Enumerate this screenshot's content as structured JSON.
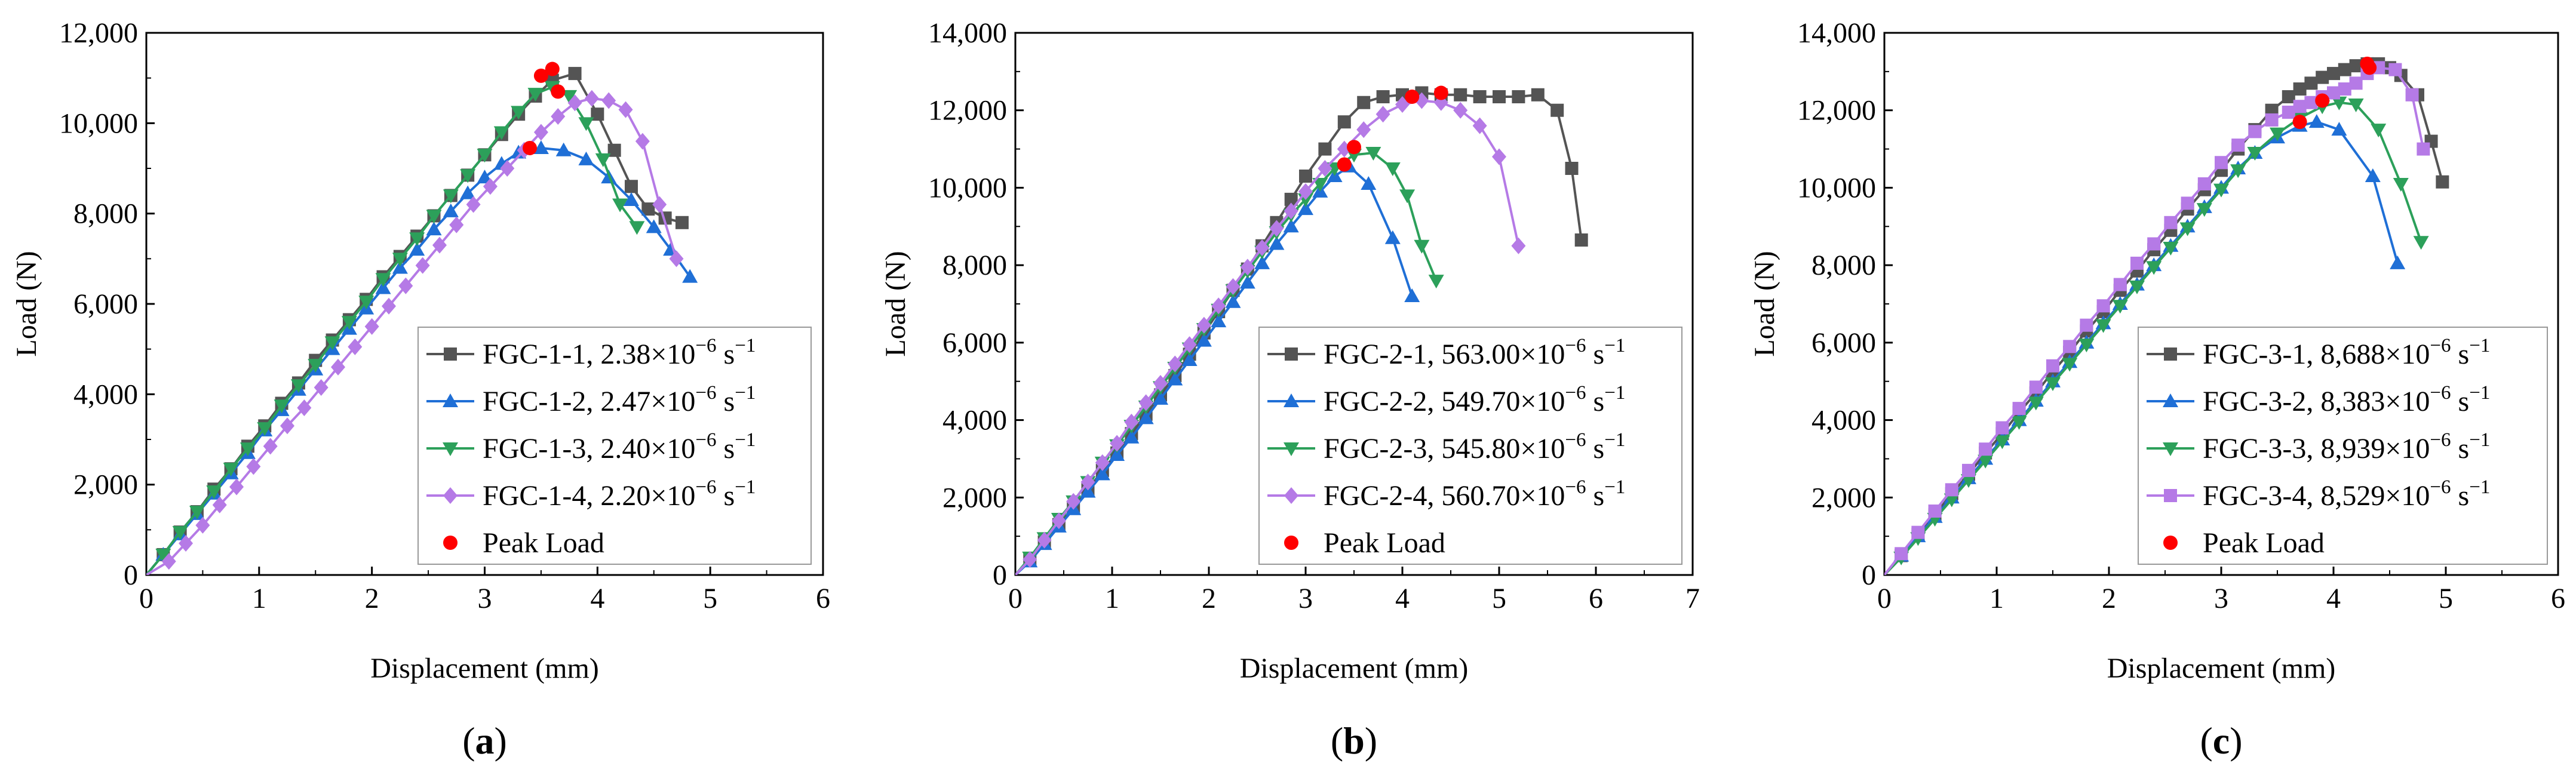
{
  "figure": {
    "panel_labels": [
      "(a)",
      "(b)",
      "(c)"
    ],
    "colors": {
      "black": "#545454",
      "blue": "#1f6fd6",
      "green": "#2ca05a",
      "purple": "#b57ae6",
      "peak": "#ff0000"
    }
  },
  "chart_data": [
    {
      "type": "line",
      "panel_label": "(a)",
      "xlabel": "Displacement (mm)",
      "ylabel": "Load (N)",
      "xlim": [
        0,
        6
      ],
      "ylim": [
        0,
        12000
      ],
      "xticks": [
        0,
        1,
        2,
        3,
        4,
        5,
        6
      ],
      "xtick_labels": [
        "0",
        "1",
        "2",
        "3",
        "4",
        "5",
        "6"
      ],
      "yticks": [
        0,
        2000,
        4000,
        6000,
        8000,
        10000,
        12000
      ],
      "ytick_labels": [
        "0",
        "2,000",
        "4,000",
        "6,000",
        "8,000",
        "10,000",
        "12,000"
      ],
      "legend_position": "bottom-right",
      "series": [
        {
          "name": "FGC-1-1",
          "rate_value": "2.38",
          "color": "#545454",
          "marker": "square",
          "x": [
            0,
            0.15,
            0.3,
            0.45,
            0.6,
            0.75,
            0.9,
            1.05,
            1.2,
            1.35,
            1.5,
            1.65,
            1.8,
            1.95,
            2.1,
            2.25,
            2.4,
            2.55,
            2.7,
            2.85,
            3.0,
            3.15,
            3.3,
            3.45,
            3.6,
            3.8,
            4.0,
            4.15,
            4.3,
            4.45,
            4.6,
            4.75
          ],
          "y": [
            0,
            450,
            950,
            1400,
            1900,
            2350,
            2850,
            3300,
            3800,
            4250,
            4750,
            5200,
            5650,
            6100,
            6600,
            7050,
            7500,
            7950,
            8400,
            8850,
            9300,
            9750,
            10200,
            10600,
            10950,
            11100,
            10200,
            9400,
            8600,
            8100,
            7900,
            7800
          ]
        },
        {
          "name": "FGC-1-2",
          "rate_value": "2.47",
          "color": "#1f6fd6",
          "marker": "triangle-up",
          "x": [
            0,
            0.15,
            0.3,
            0.45,
            0.6,
            0.75,
            0.9,
            1.05,
            1.2,
            1.35,
            1.5,
            1.65,
            1.8,
            1.95,
            2.1,
            2.25,
            2.4,
            2.55,
            2.7,
            2.85,
            3.0,
            3.15,
            3.3,
            3.5,
            3.7,
            3.9,
            4.1,
            4.3,
            4.5,
            4.65,
            4.82
          ],
          "y": [
            0,
            450,
            900,
            1350,
            1800,
            2250,
            2700,
            3200,
            3650,
            4100,
            4550,
            5000,
            5450,
            5900,
            6350,
            6800,
            7200,
            7650,
            8050,
            8450,
            8800,
            9100,
            9350,
            9450,
            9400,
            9200,
            8800,
            8300,
            7700,
            7200,
            6600
          ]
        },
        {
          "name": "FGC-1-3",
          "rate_value": "2.40",
          "color": "#2ca05a",
          "marker": "triangle-down",
          "x": [
            0,
            0.15,
            0.3,
            0.45,
            0.6,
            0.75,
            0.9,
            1.05,
            1.2,
            1.35,
            1.5,
            1.65,
            1.8,
            1.95,
            2.1,
            2.25,
            2.4,
            2.55,
            2.7,
            2.85,
            3.0,
            3.15,
            3.3,
            3.45,
            3.6,
            3.75,
            3.9,
            4.05,
            4.2,
            4.35
          ],
          "y": [
            0,
            450,
            950,
            1400,
            1850,
            2350,
            2800,
            3250,
            3750,
            4200,
            4650,
            5150,
            5600,
            6050,
            6550,
            7000,
            7450,
            7950,
            8400,
            8850,
            9300,
            9800,
            10250,
            10650,
            10800,
            10600,
            10000,
            9200,
            8200,
            7700
          ]
        },
        {
          "name": "FGC-1-4",
          "rate_value": "2.20",
          "color": "#b57ae6",
          "marker": "diamond",
          "x": [
            0,
            0.2,
            0.35,
            0.5,
            0.65,
            0.8,
            0.95,
            1.1,
            1.25,
            1.4,
            1.55,
            1.7,
            1.85,
            2.0,
            2.15,
            2.3,
            2.45,
            2.6,
            2.75,
            2.9,
            3.05,
            3.2,
            3.35,
            3.5,
            3.65,
            3.8,
            3.95,
            4.1,
            4.25,
            4.4,
            4.55,
            4.7
          ],
          "y": [
            0,
            300,
            700,
            1100,
            1550,
            1950,
            2400,
            2850,
            3300,
            3700,
            4150,
            4600,
            5050,
            5500,
            5950,
            6400,
            6850,
            7300,
            7750,
            8200,
            8600,
            9000,
            9400,
            9800,
            10150,
            10450,
            10550,
            10500,
            10300,
            9600,
            8200,
            7000
          ]
        }
      ],
      "peaks": {
        "name": "Peak Load",
        "color": "#ff0000",
        "x": [
          3.4,
          3.5,
          3.6,
          3.65
        ],
        "y": [
          9450,
          11050,
          11200,
          10700
        ]
      }
    },
    {
      "type": "line",
      "panel_label": "(b)",
      "xlabel": "Displacement (mm)",
      "ylabel": "Load (N)",
      "xlim": [
        0,
        7
      ],
      "ylim": [
        0,
        14000
      ],
      "xticks": [
        0,
        1,
        2,
        3,
        4,
        5,
        6,
        7
      ],
      "xtick_labels": [
        "0",
        "1",
        "2",
        "3",
        "4",
        "5",
        "6",
        "7"
      ],
      "yticks": [
        0,
        2000,
        4000,
        6000,
        8000,
        10000,
        12000,
        14000
      ],
      "ytick_labels": [
        "0",
        "2,000",
        "4,000",
        "6,000",
        "8,000",
        "10,000",
        "12,000",
        "14,000"
      ],
      "legend_position": "bottom-right",
      "series": [
        {
          "name": "FGC-2-1",
          "rate_value": "563.00",
          "color": "#545454",
          "marker": "square",
          "x": [
            0,
            0.15,
            0.3,
            0.45,
            0.6,
            0.75,
            0.9,
            1.05,
            1.2,
            1.35,
            1.5,
            1.65,
            1.8,
            1.95,
            2.1,
            2.25,
            2.4,
            2.55,
            2.7,
            2.85,
            3.0,
            3.2,
            3.4,
            3.6,
            3.8,
            4.0,
            4.2,
            4.4,
            4.6,
            4.8,
            5.0,
            5.2,
            5.4,
            5.6,
            5.75,
            5.85
          ],
          "y": [
            0,
            400,
            850,
            1300,
            1750,
            2200,
            2700,
            3150,
            3650,
            4150,
            4650,
            5150,
            5700,
            6250,
            6800,
            7350,
            7900,
            8500,
            9100,
            9700,
            10300,
            11000,
            11700,
            12200,
            12350,
            12400,
            12450,
            12400,
            12400,
            12350,
            12350,
            12350,
            12400,
            12000,
            10500,
            8650
          ]
        },
        {
          "name": "FGC-2-2",
          "rate_value": "549.70",
          "color": "#1f6fd6",
          "marker": "triangle-up",
          "x": [
            0,
            0.15,
            0.3,
            0.45,
            0.6,
            0.75,
            0.9,
            1.05,
            1.2,
            1.35,
            1.5,
            1.65,
            1.8,
            1.95,
            2.1,
            2.25,
            2.4,
            2.55,
            2.7,
            2.85,
            3.0,
            3.15,
            3.3,
            3.45,
            3.65,
            3.9,
            4.1
          ],
          "y": [
            0,
            350,
            800,
            1250,
            1700,
            2150,
            2600,
            3100,
            3550,
            4050,
            4550,
            5050,
            5550,
            6050,
            6550,
            7050,
            7550,
            8050,
            8550,
            9000,
            9450,
            9900,
            10300,
            10550,
            10100,
            8700,
            7200
          ]
        },
        {
          "name": "FGC-2-3",
          "rate_value": "545.80",
          "color": "#2ca05a",
          "marker": "triangle-down",
          "x": [
            0,
            0.15,
            0.3,
            0.45,
            0.6,
            0.75,
            0.9,
            1.05,
            1.2,
            1.35,
            1.5,
            1.65,
            1.8,
            1.95,
            2.1,
            2.25,
            2.4,
            2.55,
            2.7,
            2.85,
            3.0,
            3.15,
            3.3,
            3.5,
            3.7,
            3.9,
            4.05,
            4.2,
            4.35
          ],
          "y": [
            0,
            450,
            950,
            1450,
            1900,
            2400,
            2900,
            3350,
            3850,
            4350,
            4850,
            5350,
            5850,
            6350,
            6850,
            7350,
            7850,
            8350,
            8850,
            9300,
            9700,
            10100,
            10500,
            10850,
            10900,
            10500,
            9800,
            8500,
            7600
          ]
        },
        {
          "name": "FGC-2-4",
          "rate_value": "560.70",
          "color": "#b57ae6",
          "marker": "diamond",
          "x": [
            0,
            0.15,
            0.3,
            0.45,
            0.6,
            0.75,
            0.9,
            1.05,
            1.2,
            1.35,
            1.5,
            1.65,
            1.8,
            1.95,
            2.1,
            2.25,
            2.4,
            2.55,
            2.7,
            2.85,
            3.0,
            3.2,
            3.4,
            3.6,
            3.8,
            4.0,
            4.2,
            4.4,
            4.6,
            4.8,
            5.0,
            5.2
          ],
          "y": [
            0,
            400,
            900,
            1400,
            1900,
            2400,
            2900,
            3400,
            3950,
            4450,
            4950,
            5450,
            5950,
            6450,
            6950,
            7450,
            7950,
            8450,
            8950,
            9400,
            9900,
            10500,
            11000,
            11500,
            11900,
            12150,
            12250,
            12200,
            12000,
            11600,
            10800,
            8500
          ]
        }
      ],
      "peaks": {
        "name": "Peak Load",
        "color": "#ff0000",
        "x": [
          3.4,
          3.5,
          4.1,
          4.4
        ],
        "y": [
          10600,
          11050,
          12350,
          12450
        ]
      }
    },
    {
      "type": "line",
      "panel_label": "(c)",
      "xlabel": "Displacement (mm)",
      "ylabel": "Load (N)",
      "xlim": [
        0,
        6
      ],
      "ylim": [
        0,
        14000
      ],
      "xticks": [
        0,
        1,
        2,
        3,
        4,
        5,
        6
      ],
      "xtick_labels": [
        "0",
        "1",
        "2",
        "3",
        "4",
        "5",
        "6"
      ],
      "yticks": [
        0,
        2000,
        4000,
        6000,
        8000,
        10000,
        12000,
        14000
      ],
      "ytick_labels": [
        "0",
        "2,000",
        "4,000",
        "6,000",
        "8,000",
        "10,000",
        "12,000",
        "14,000"
      ],
      "legend_position": "bottom-right",
      "series": [
        {
          "name": "FGC-3-1",
          "rate_value": "8,688",
          "color": "#545454",
          "marker": "square",
          "x": [
            0,
            0.15,
            0.3,
            0.45,
            0.6,
            0.75,
            0.9,
            1.05,
            1.2,
            1.35,
            1.5,
            1.65,
            1.8,
            1.95,
            2.1,
            2.25,
            2.4,
            2.55,
            2.7,
            2.85,
            3.0,
            3.15,
            3.3,
            3.45,
            3.6,
            3.7,
            3.8,
            3.9,
            4.0,
            4.1,
            4.2,
            4.3,
            4.4,
            4.5,
            4.6,
            4.75,
            4.87,
            4.97
          ],
          "y": [
            0,
            500,
            1050,
            1550,
            2100,
            2600,
            3150,
            3650,
            4200,
            4700,
            5250,
            5750,
            6300,
            6800,
            7350,
            7850,
            8400,
            8900,
            9450,
            9950,
            10450,
            11000,
            11500,
            12000,
            12350,
            12550,
            12700,
            12850,
            12950,
            13050,
            13150,
            13200,
            13200,
            13100,
            12900,
            12400,
            11200,
            10150
          ]
        },
        {
          "name": "FGC-3-2",
          "rate_value": "8,383",
          "color": "#1f6fd6",
          "marker": "triangle-up",
          "x": [
            0,
            0.15,
            0.3,
            0.45,
            0.6,
            0.75,
            0.9,
            1.05,
            1.2,
            1.35,
            1.5,
            1.65,
            1.8,
            1.95,
            2.1,
            2.25,
            2.4,
            2.55,
            2.7,
            2.85,
            3.0,
            3.15,
            3.3,
            3.5,
            3.7,
            3.85,
            4.05,
            4.35,
            4.57
          ],
          "y": [
            0,
            500,
            1000,
            1500,
            2000,
            2500,
            3000,
            3500,
            4000,
            4500,
            5000,
            5500,
            6000,
            6500,
            7000,
            7500,
            8000,
            8500,
            9000,
            9500,
            10000,
            10500,
            10900,
            11300,
            11600,
            11700,
            11500,
            10300,
            8050
          ]
        },
        {
          "name": "FGC-3-3",
          "rate_value": "8,939",
          "color": "#2ca05a",
          "marker": "triangle-down",
          "x": [
            0,
            0.15,
            0.3,
            0.45,
            0.6,
            0.75,
            0.9,
            1.05,
            1.2,
            1.35,
            1.5,
            1.65,
            1.8,
            1.95,
            2.1,
            2.25,
            2.4,
            2.55,
            2.7,
            2.85,
            3.0,
            3.15,
            3.3,
            3.5,
            3.7,
            3.9,
            4.05,
            4.2,
            4.4,
            4.6,
            4.78
          ],
          "y": [
            0,
            450,
            950,
            1450,
            1950,
            2450,
            2950,
            3450,
            3950,
            4450,
            4950,
            5450,
            5950,
            6450,
            6950,
            7450,
            7950,
            8450,
            8950,
            9450,
            9950,
            10450,
            10900,
            11400,
            11800,
            12100,
            12200,
            12150,
            11500,
            10100,
            8600
          ]
        },
        {
          "name": "FGC-3-4",
          "rate_value": "8,529",
          "color": "#b57ae6",
          "marker": "square",
          "x": [
            0,
            0.15,
            0.3,
            0.45,
            0.6,
            0.75,
            0.9,
            1.05,
            1.2,
            1.35,
            1.5,
            1.65,
            1.8,
            1.95,
            2.1,
            2.25,
            2.4,
            2.55,
            2.7,
            2.85,
            3.0,
            3.15,
            3.3,
            3.45,
            3.6,
            3.7,
            3.8,
            3.9,
            4.0,
            4.1,
            4.2,
            4.3,
            4.4,
            4.55,
            4.7,
            4.8
          ],
          "y": [
            0,
            550,
            1100,
            1650,
            2200,
            2700,
            3250,
            3800,
            4300,
            4850,
            5400,
            5900,
            6450,
            6950,
            7500,
            8050,
            8550,
            9100,
            9600,
            10100,
            10650,
            11100,
            11450,
            11750,
            11950,
            12100,
            12200,
            12350,
            12450,
            12550,
            12700,
            12950,
            13100,
            13050,
            12400,
            11000
          ]
        }
      ],
      "peaks": {
        "name": "Peak Load",
        "color": "#ff0000",
        "x": [
          3.7,
          3.9,
          4.3,
          4.32
        ],
        "y": [
          11700,
          12250,
          13200,
          13100
        ]
      }
    }
  ],
  "legend_text": {
    "rate_mid": "×10",
    "rate_exp": "−6",
    "rate_unit_s": " s",
    "rate_unit_exp": "−1",
    "peak_label": "Peak Load"
  }
}
